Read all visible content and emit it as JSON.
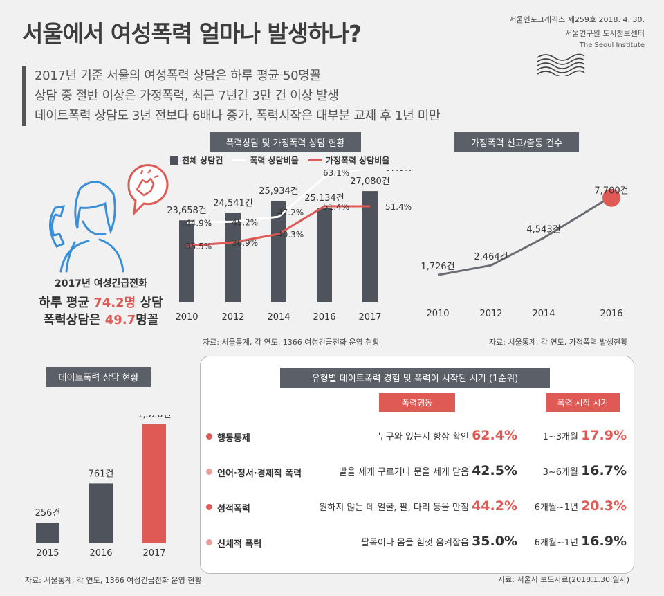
{
  "title": "서울에서 여성폭력 얼마나 발생하나?",
  "publication": {
    "issue": "서울인포그래픽스 제259호 2018. 4. 30.",
    "org": "서울연구원 도시정보센터",
    "org_en": "The Seoul Institute"
  },
  "summary": [
    "2017년 기준 서울의 여성폭력 상담은 하루 평균 50명꼴",
    "상담 중 절반 이상은 가정폭력, 최근 7년간 3만 건 이상 발생",
    "데이트폭력 상담도 3년 전보다 6배나 증가, 폭력시작은 대부분 교제 후 1년 미만"
  ],
  "hotline": {
    "title": "2017년 여성긴급전화",
    "line2_pre": "하루 평균 ",
    "line2_val": "74.2명",
    "line2_post": " 상담",
    "line3_pre": "폭력상담은 ",
    "line3_val": "49.7",
    "line3_post": "명꼴"
  },
  "colors": {
    "bar_dark": "#4f535b",
    "accent_red": "#e05a55",
    "dot_dark": "#e05a55",
    "dot_light": "#ee9d98",
    "tag_bg": "#5a5f68"
  },
  "icons": [
    "phone-icon",
    "woman-icon",
    "speech-bubble-icon",
    "fist-icon",
    "seoul-institute-logo-icon"
  ],
  "chart_data": [
    {
      "type": "bar",
      "title": "폭력상담 및 가정폭력 상담 현황",
      "categories": [
        "2010",
        "2012",
        "2014",
        "2016",
        "2017"
      ],
      "series": [
        {
          "name": "전체 상담건",
          "kind": "bar",
          "values": [
            23658,
            24541,
            25934,
            25134,
            27080
          ],
          "labels": [
            "23,658건",
            "24,541건",
            "25,934건",
            "25,134건",
            "27,080건"
          ]
        },
        {
          "name": "폭력 상담비율",
          "kind": "line",
          "values": [
            44.9,
            45.2,
            47.2,
            63.1,
            67.0
          ],
          "labels": [
            "44.9%",
            "45.2%",
            "47.2%",
            "63.1%",
            "67.0%"
          ]
        },
        {
          "name": "가정폭력 상담비율",
          "kind": "line",
          "values": [
            35.5,
            36.9,
            40.3,
            51.4,
            51.4
          ],
          "labels": [
            "35.5%",
            "36.9%",
            "40.3%",
            "51.4%",
            "51.4%"
          ]
        }
      ],
      "source": "자료: 서울통계, 각 연도, 1366 여성긴급전화 운영 현황"
    },
    {
      "type": "line",
      "title": "가정폭력 신고/출동 건수",
      "categories": [
        "2010",
        "2012",
        "2014",
        "2016"
      ],
      "series": [
        {
          "values": [
            1726,
            2464,
            4543,
            7700
          ],
          "labels": [
            "1,726건",
            "2,464건",
            "4,543건",
            "7,700건"
          ]
        }
      ],
      "source": "자료: 서울통계, 각 연도, 가정폭력 발생현황"
    },
    {
      "type": "bar",
      "title": "데이트폭력 상담 현황",
      "categories": [
        "2015",
        "2016",
        "2017"
      ],
      "series": [
        {
          "values": [
            256,
            761,
            1520
          ],
          "labels": [
            "256건",
            "761건",
            "1,520건"
          ]
        }
      ],
      "source": "자료: 서울통계, 각 연도, 1366 여성긴급전화 운영 현황"
    },
    {
      "type": "table",
      "title": "유형별 데이트폭력 경험 및 폭력이 시작된 시기 (1순위)",
      "columns": [
        "폭력행동",
        "폭력 시작 시기"
      ],
      "rows": [
        {
          "category": "행동통제",
          "behavior": "누구와 있는지 항상 확인",
          "behavior_pct": "62.4%",
          "start": "1~3개월",
          "start_pct": "17.9%",
          "dot": "dark",
          "behavior_red": true,
          "start_red": true
        },
        {
          "category": "언어·정서·경제적 폭력",
          "behavior": "발을 세게 구르거나 문을 세게 닫음",
          "behavior_pct": "42.5%",
          "start": "3~6개월",
          "start_pct": "16.7%",
          "dot": "light",
          "behavior_red": false,
          "start_red": false
        },
        {
          "category": "성적폭력",
          "behavior": "원하지 않는 데 얼굴, 팔, 다리 등을 만짐",
          "behavior_pct": "44.2%",
          "start": "6개월~1년",
          "start_pct": "20.3%",
          "dot": "dark",
          "behavior_red": true,
          "start_red": true
        },
        {
          "category": "신체적 폭력",
          "behavior": "팔목이나 몸을  힘껏 움켜잡음",
          "behavior_pct": "35.0%",
          "start": "6개월~1년",
          "start_pct": "16.9%",
          "dot": "light",
          "behavior_red": false,
          "start_red": false
        }
      ],
      "source": "자료: 서울시 보도자료(2018.1.30.일자)"
    }
  ]
}
